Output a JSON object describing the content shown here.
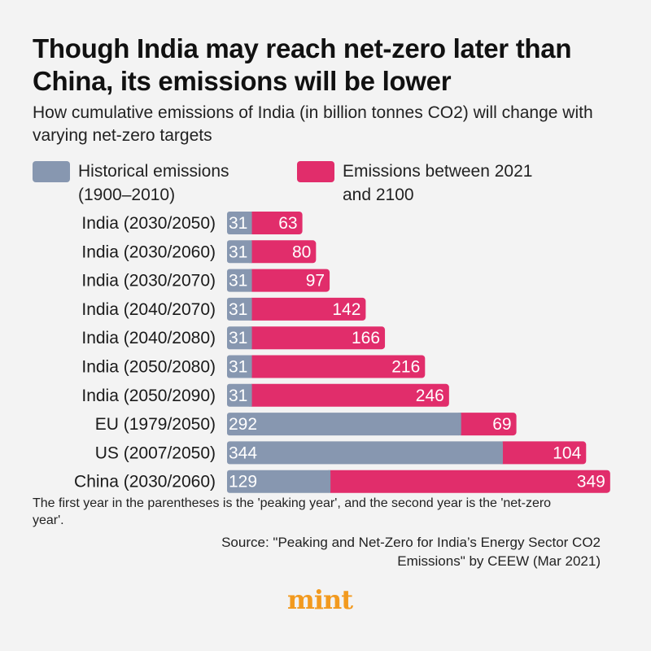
{
  "title": "Though India may reach net-zero later than China, its emissions will be lower",
  "subtitle": "How cumulative emissions of India (in billion tonnes CO2) will change with varying net-zero targets",
  "colors": {
    "historical": "#8797b0",
    "future": "#e12d6b",
    "background": "#f3f3f3",
    "logo": "#f29a1f"
  },
  "chart_data": {
    "type": "bar",
    "orientation": "horizontal",
    "stacked": true,
    "categories": [
      "India (2030/2050)",
      "India (2030/2060)",
      "India (2030/2070)",
      "India (2040/2070)",
      "India (2040/2080)",
      "India (2050/2080)",
      "India (2050/2090)",
      "EU (1979/2050)",
      "US (2007/2050)",
      "China (2030/2060)"
    ],
    "series": [
      {
        "name": "Historical emissions (1900–2010)",
        "values": [
          31,
          31,
          31,
          31,
          31,
          31,
          31,
          292,
          344,
          129
        ]
      },
      {
        "name": "Emissions between 2021 and 2100",
        "values": [
          63,
          80,
          97,
          142,
          166,
          216,
          246,
          69,
          104,
          349
        ]
      }
    ],
    "legend_position": "top",
    "grid": false
  },
  "note": "The first year in the parentheses is the 'peaking year', and the second year is the 'net-zero year'.",
  "source": "Source: \"Peaking and Net-Zero for India’s Energy Sector CO2 Emissions\" by CEEW (Mar 2021)",
  "logo": "mint"
}
